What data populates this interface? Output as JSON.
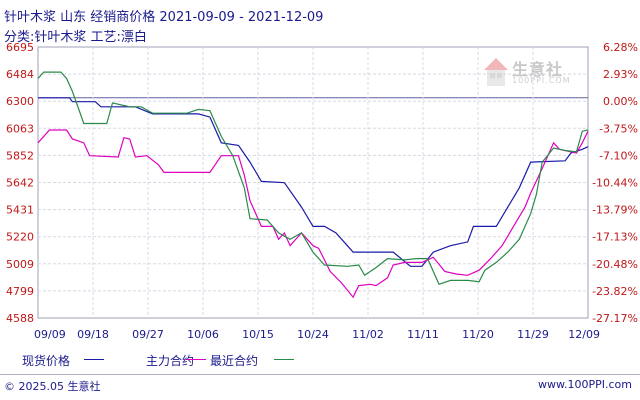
{
  "header": {
    "title": "针叶木浆 山东 经销商价格 2021-09-09 - 2021-12-09",
    "subtitle": "分类:针叶木浆 工艺:漂白"
  },
  "watermark": {
    "text": "生意社",
    "sub": "100PPI.COM"
  },
  "footer": {
    "left": "© 2025.05 生意社",
    "right": "www.100PPI.com"
  },
  "legend": [
    {
      "label": "现货价格",
      "color": "#1a1aa8"
    },
    {
      "label": "主力合约",
      "color": "#e000c0"
    },
    {
      "label": "最近合约",
      "color": "#2a8a4a"
    }
  ],
  "chart_data": {
    "type": "line",
    "x_ticks": [
      "09/09",
      "09/18",
      "09/27",
      "10/06",
      "10/15",
      "10/24",
      "11/02",
      "11/11",
      "11/20",
      "11/29",
      "12/09"
    ],
    "y_left_ticks": [
      "6695",
      "6484",
      "6300",
      "6063",
      "5852",
      "5642",
      "5431",
      "5220",
      "5009",
      "4799",
      "4588"
    ],
    "y_right_ticks": [
      "6.28%",
      "2.93%",
      "0.00%",
      "-3.75%",
      "-7.10%",
      "-10.44%",
      "-13.79%",
      "-17.13%",
      "-20.48%",
      "-23.82%",
      "-27.17%"
    ],
    "ylim": [
      4588,
      6695
    ],
    "reference_value": 6300,
    "series": [
      {
        "name": "现货价格",
        "color": "#1a1aa8",
        "points": [
          [
            0,
            6300
          ],
          [
            5.5,
            6300
          ],
          [
            6,
            6270
          ],
          [
            10,
            6270
          ],
          [
            11,
            6230
          ],
          [
            17,
            6230
          ],
          [
            20,
            6175
          ],
          [
            28,
            6175
          ],
          [
            30,
            6150
          ],
          [
            32,
            5950
          ],
          [
            35,
            5930
          ],
          [
            37,
            5800
          ],
          [
            39,
            5650
          ],
          [
            43,
            5640
          ],
          [
            46,
            5450
          ],
          [
            48,
            5300
          ],
          [
            50,
            5300
          ],
          [
            52,
            5250
          ],
          [
            54,
            5150
          ],
          [
            55,
            5100
          ],
          [
            62,
            5100
          ],
          [
            65,
            4990
          ],
          [
            67,
            4990
          ],
          [
            69,
            5100
          ],
          [
            72,
            5150
          ],
          [
            75,
            5180
          ],
          [
            76,
            5300
          ],
          [
            80,
            5300
          ],
          [
            82,
            5450
          ],
          [
            84,
            5600
          ],
          [
            86,
            5800
          ],
          [
            92,
            5810
          ],
          [
            93,
            5870
          ],
          [
            95,
            5900
          ],
          [
            96,
            5920
          ]
        ]
      },
      {
        "name": "主力合约",
        "color": "#e000c0",
        "points": [
          [
            0,
            5950
          ],
          [
            2,
            6050
          ],
          [
            5,
            6050
          ],
          [
            6,
            5980
          ],
          [
            8,
            5950
          ],
          [
            9,
            5850
          ],
          [
            14,
            5840
          ],
          [
            15,
            5990
          ],
          [
            16,
            5980
          ],
          [
            17,
            5840
          ],
          [
            19,
            5850
          ],
          [
            21,
            5780
          ],
          [
            22,
            5720
          ],
          [
            30,
            5720
          ],
          [
            32,
            5850
          ],
          [
            35,
            5850
          ],
          [
            36,
            5700
          ],
          [
            37,
            5500
          ],
          [
            39,
            5300
          ],
          [
            41,
            5300
          ],
          [
            42,
            5200
          ],
          [
            43,
            5250
          ],
          [
            44,
            5150
          ],
          [
            46,
            5250
          ],
          [
            48,
            5150
          ],
          [
            49,
            5130
          ],
          [
            51,
            4950
          ],
          [
            53,
            4860
          ],
          [
            55,
            4750
          ],
          [
            56,
            4840
          ],
          [
            58,
            4850
          ],
          [
            59,
            4840
          ],
          [
            61,
            4900
          ],
          [
            62,
            5000
          ],
          [
            64,
            5020
          ],
          [
            67,
            5020
          ],
          [
            69,
            5060
          ],
          [
            71,
            4950
          ],
          [
            73,
            4930
          ],
          [
            75,
            4920
          ],
          [
            77,
            4960
          ],
          [
            79,
            5050
          ],
          [
            81,
            5150
          ],
          [
            83,
            5300
          ],
          [
            85,
            5450
          ],
          [
            86,
            5560
          ],
          [
            88,
            5750
          ],
          [
            90,
            5950
          ],
          [
            91,
            5900
          ],
          [
            93,
            5880
          ],
          [
            94,
            5870
          ],
          [
            95,
            5950
          ],
          [
            96,
            6040
          ]
        ]
      },
      {
        "name": "最近合约",
        "color": "#2a8a4a",
        "points": [
          [
            0,
            6450
          ],
          [
            1,
            6500
          ],
          [
            4,
            6500
          ],
          [
            5,
            6450
          ],
          [
            6,
            6350
          ],
          [
            8,
            6100
          ],
          [
            12,
            6100
          ],
          [
            13,
            6260
          ],
          [
            15,
            6240
          ],
          [
            16,
            6230
          ],
          [
            18,
            6230
          ],
          [
            20,
            6180
          ],
          [
            26,
            6180
          ],
          [
            28,
            6210
          ],
          [
            30,
            6200
          ],
          [
            32,
            6000
          ],
          [
            34,
            5850
          ],
          [
            36,
            5600
          ],
          [
            37,
            5360
          ],
          [
            40,
            5350
          ],
          [
            42,
            5250
          ],
          [
            44,
            5200
          ],
          [
            46,
            5250
          ],
          [
            48,
            5100
          ],
          [
            50,
            5000
          ],
          [
            54,
            4990
          ],
          [
            56,
            5000
          ],
          [
            57,
            4920
          ],
          [
            59,
            4980
          ],
          [
            61,
            5050
          ],
          [
            64,
            5040
          ],
          [
            66,
            5050
          ],
          [
            68,
            5050
          ],
          [
            70,
            4850
          ],
          [
            72,
            4880
          ],
          [
            75,
            4880
          ],
          [
            77,
            4870
          ],
          [
            78,
            4960
          ],
          [
            80,
            5020
          ],
          [
            82,
            5100
          ],
          [
            84,
            5200
          ],
          [
            86,
            5400
          ],
          [
            87,
            5550
          ],
          [
            88,
            5800
          ],
          [
            90,
            5910
          ],
          [
            92,
            5890
          ],
          [
            94,
            5880
          ],
          [
            95,
            6040
          ],
          [
            96,
            6050
          ]
        ]
      }
    ]
  }
}
